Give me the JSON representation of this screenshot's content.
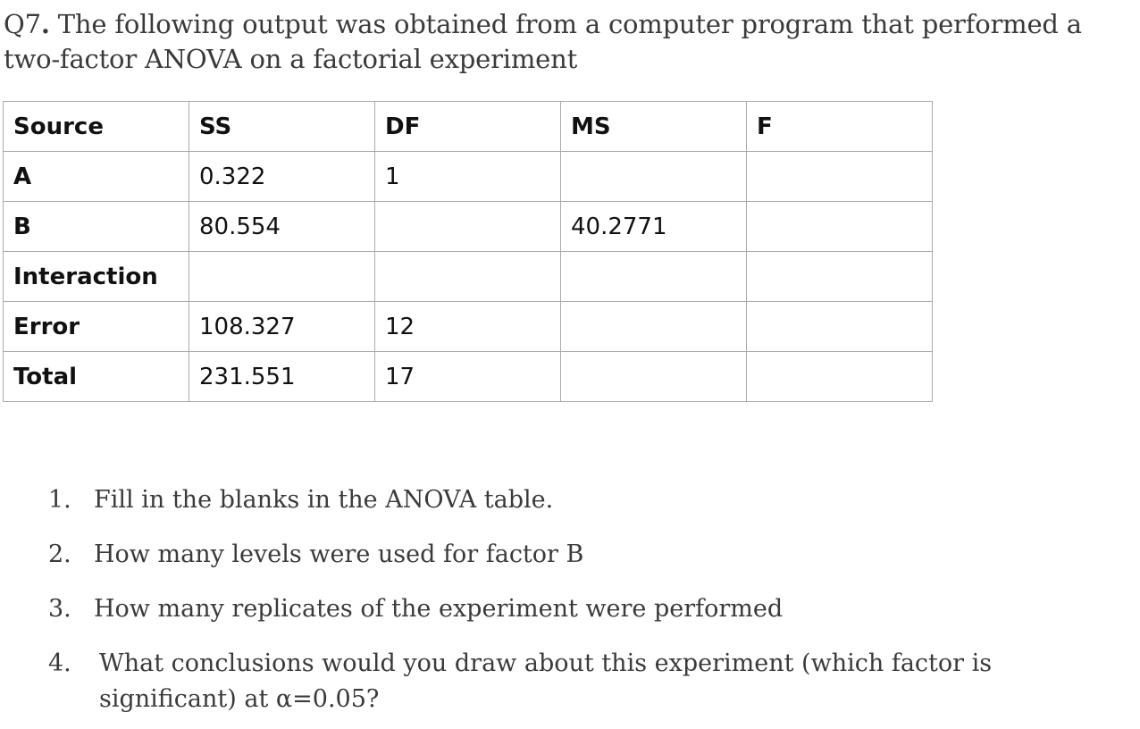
{
  "question": {
    "number": "Q7",
    "text": " The following output was obtained from a computer program that performed a two-factor ANOVA on a factorial experiment"
  },
  "table": {
    "headers": [
      "Source",
      "SS",
      "DF",
      "MS",
      "F"
    ],
    "rows": [
      [
        "A",
        "0.322",
        "1",
        "",
        ""
      ],
      [
        "B",
        "80.554",
        "",
        "40.2771",
        ""
      ],
      [
        "Interaction",
        "",
        "",
        "",
        ""
      ],
      [
        "Error",
        "108.327",
        "12",
        "",
        ""
      ],
      [
        "Total",
        "231.551",
        "17",
        "",
        ""
      ]
    ]
  },
  "tasks": [
    {
      "num": "1.",
      "text": "Fill in the blanks in the ANOVA table."
    },
    {
      "num": "2.",
      "text": "How many levels were used for factor B"
    },
    {
      "num": "3.",
      "text": "How many replicates of the experiment were performed"
    },
    {
      "num": "4.",
      "text": "What conclusions would you draw about this experiment (which factor is significant) at α=0.05?"
    }
  ]
}
